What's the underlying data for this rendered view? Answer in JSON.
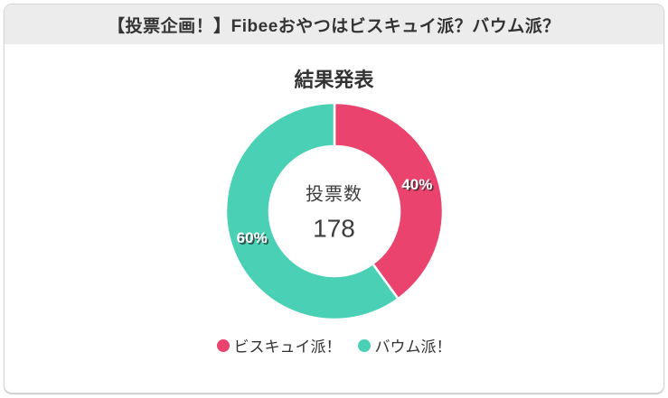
{
  "header": {
    "title": "【投票企画！】Fibeeおやつはビスキュイ派？バウム派？"
  },
  "main": {
    "chart_title": "結果発表"
  },
  "chart_data": {
    "type": "pie",
    "donut": true,
    "title": "結果発表",
    "categories": [
      "ビスキュイ派！",
      "バウム派！"
    ],
    "values": [
      40,
      60
    ],
    "value_labels": [
      "40%",
      "60%"
    ],
    "colors": [
      "#e9436e",
      "#4ad0b5"
    ],
    "center_label": "投票数",
    "center_value": "178",
    "total_votes": 178,
    "legend_position": "bottom",
    "start_angle_deg": 0,
    "clockwise": true
  },
  "legend": {
    "items": [
      {
        "label": "ビスキュイ派！",
        "color": "#e9436e"
      },
      {
        "label": "バウム派！",
        "color": "#4ad0b5"
      }
    ]
  }
}
